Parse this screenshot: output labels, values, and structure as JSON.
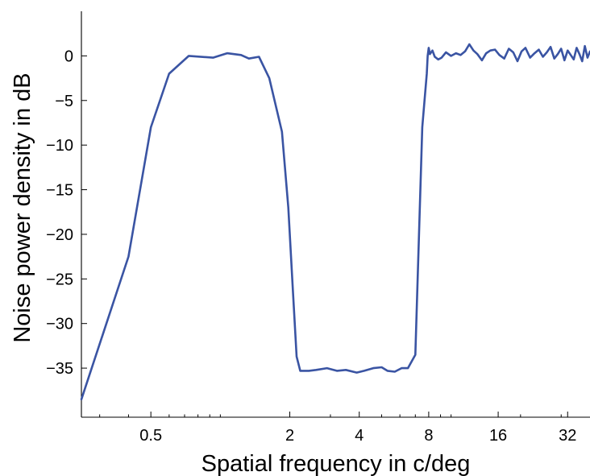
{
  "chart_data": {
    "type": "line",
    "title": "",
    "xlabel": "Spatial frequency in c/deg",
    "ylabel": "Noise power density in dB",
    "x_scale": "log2",
    "xlim": [
      0.25,
      40
    ],
    "ylim": [
      -40.5,
      5
    ],
    "x_ticks": [
      0.5,
      2,
      4,
      8,
      16,
      32
    ],
    "x_tick_labels": [
      "0.5",
      "2",
      "4",
      "8",
      "16",
      "32"
    ],
    "y_ticks": [
      0,
      -5,
      -10,
      -15,
      -20,
      -25,
      -30,
      -35
    ],
    "y_tick_labels": [
      "0",
      "-5",
      "-10",
      "-15",
      "-20",
      "-25",
      "-30",
      "-35"
    ],
    "grid": false,
    "line_color": "#3a54a3",
    "series": [
      {
        "x": [
          0.25,
          0.4,
          0.5,
          0.6,
          0.73,
          0.93,
          1.07,
          1.23,
          1.33,
          1.47,
          1.63,
          1.85,
          1.97,
          2.06,
          2.14,
          2.22,
          2.3,
          2.42,
          2.6,
          2.9,
          3.2,
          3.5,
          3.9,
          4.2,
          4.6,
          5.0,
          5.3,
          5.7,
          6.1,
          6.5,
          7.0,
          7.5,
          7.85,
          7.92,
          8.0,
          8.1,
          8.3,
          8.5,
          8.8,
          9.1,
          9.5,
          10.0,
          10.5,
          11.0,
          11.5,
          12.0,
          12.5,
          13.0,
          13.6,
          14.2,
          14.8,
          15.5,
          16.2,
          17.0,
          17.8,
          18.6,
          19.4,
          20.2,
          21.0,
          22.0,
          23.0,
          24.0,
          25.0,
          26.0,
          27.0,
          28.0,
          29.0,
          30.0,
          31.0,
          32.0,
          33.0,
          34.0,
          35.0,
          36.0,
          37.0,
          38.0,
          39.0,
          40.0
        ],
        "values": [
          -38.5,
          -22.5,
          -8.0,
          -2.0,
          0.0,
          -0.2,
          0.3,
          0.1,
          -0.3,
          -0.1,
          -2.5,
          -8.5,
          -17.0,
          -26.0,
          -33.7,
          -35.3,
          -35.3,
          -35.3,
          -35.2,
          -35.0,
          -35.3,
          -35.2,
          -35.5,
          -35.3,
          -35.0,
          -34.9,
          -35.3,
          -35.4,
          -35.0,
          -35.0,
          -33.5,
          -8.0,
          -2.0,
          0.0,
          0.9,
          0.2,
          0.6,
          -0.1,
          -0.4,
          -0.2,
          0.4,
          0.0,
          0.3,
          0.1,
          0.5,
          1.3,
          0.6,
          0.2,
          -0.5,
          0.3,
          0.6,
          0.7,
          0.1,
          -0.3,
          0.8,
          0.4,
          -0.6,
          0.5,
          0.9,
          -0.2,
          0.3,
          0.7,
          -0.1,
          0.4,
          1.0,
          -0.3,
          0.2,
          0.8,
          -0.5,
          0.6,
          0.1,
          -0.4,
          0.9,
          0.2,
          -0.6,
          1.1,
          -0.2,
          0.5
        ]
      }
    ]
  }
}
